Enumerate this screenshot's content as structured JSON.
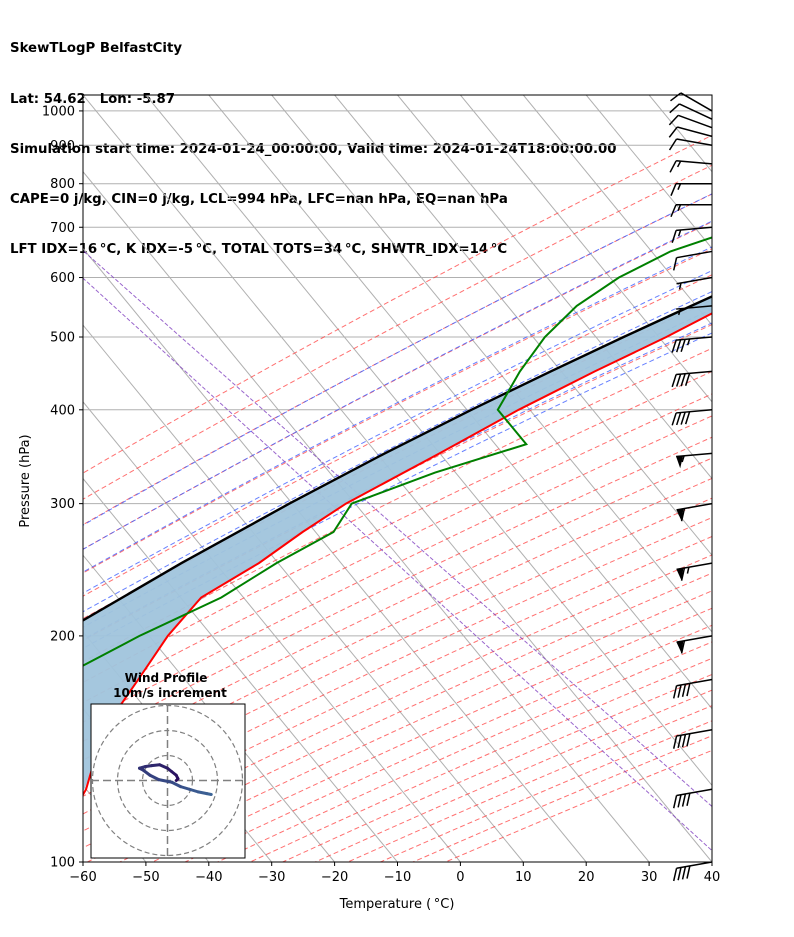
{
  "header": {
    "line1": "SkewTLogP BelfastCity",
    "line2": "Lat: 54.62   Lon: -5.87",
    "line3": "Simulation start time: 2024-01-24_00:00:00, Valid time: 2024-01-24T18:00:00.00",
    "line4": "CAPE=0 j/kg, CIN=0 j/kg, LCL=994 hPa, LFC=nan hPa, EQ=nan hPa",
    "line5": "LFT IDX=16 °C, K IDX=-5 °C, TOTAL TOTS=34 °C, SHWTR_IDX=14 °C"
  },
  "chart_data": {
    "type": "skew-t",
    "xlabel": "Temperature ( °C)",
    "ylabel": "Pressure (hPa)",
    "xlim": [
      -60,
      40
    ],
    "ylim": [
      1050,
      100
    ],
    "x_ticks": [
      "−60",
      "−50",
      "−40",
      "−30",
      "−20",
      "−10",
      "0",
      "10",
      "20",
      "30",
      "40"
    ],
    "y_ticks": [
      "100",
      "200",
      "300",
      "400",
      "500",
      "600",
      "700",
      "800",
      "900",
      "1000"
    ],
    "grid": true,
    "temperature": {
      "color": "#ff0000",
      "p": [
        1000,
        975,
        950,
        925,
        900,
        850,
        800,
        750,
        700,
        650,
        600,
        550,
        500,
        450,
        400,
        350,
        300,
        275,
        250,
        225,
        200,
        175,
        150,
        125,
        100
      ],
      "t": [
        6.8,
        5.8,
        4.2,
        2.5,
        0.9,
        -2.6,
        -6.1,
        -9.9,
        -14.2,
        -19.2,
        -24.4,
        -30.2,
        -35.7,
        -42.6,
        -49.7,
        -56.6,
        -64.9,
        -68.1,
        -71.0,
        -75.7,
        -76.0,
        -75.0,
        -74.0,
        -69.0,
        -66.0
      ]
    },
    "dewpoint": {
      "color": "#008000",
      "p": [
        1000,
        975,
        950,
        900,
        850,
        800,
        750,
        700,
        650,
        600,
        550,
        500,
        450,
        400,
        360,
        330,
        300,
        275,
        250,
        225,
        200,
        175,
        150,
        125,
        100
      ],
      "td": [
        5.5,
        4.5,
        3.3,
        -0.3,
        -4.0,
        -11.5,
        -26.9,
        -38.0,
        -46.2,
        -51.0,
        -54.0,
        -55.0,
        -54.5,
        -53.0,
        -44.0,
        -54.8,
        -64.0,
        -63.2,
        -68.2,
        -72.5,
        -80.5,
        -88.0,
        -95.5,
        -97.0,
        -100.0
      ]
    },
    "parcel_profile": {
      "color": "#000000",
      "p": [
        1000,
        994,
        950,
        900,
        850,
        800,
        750,
        700,
        650,
        600,
        550,
        500,
        450,
        400,
        350,
        300,
        250,
        200,
        150,
        100
      ],
      "t": [
        4.2,
        3.6,
        1.0,
        -2.2,
        -5.7,
        -9.5,
        -13.8,
        -18.6,
        -23.9,
        -29.6,
        -35.8,
        -42.5,
        -49.6,
        -57.2,
        -65.3,
        -73.9,
        -83.3,
        -93.7,
        -105.5,
        -120.0
      ]
    },
    "shaded_region": {
      "color": "#a0c4dc",
      "between": [
        "temperature",
        "parcel_profile"
      ]
    },
    "wind_barbs": {
      "p": [
        1000,
        975,
        950,
        925,
        900,
        850,
        800,
        750,
        700,
        650,
        600,
        550,
        500,
        450,
        400,
        350,
        300,
        250,
        200,
        175,
        150,
        125,
        100
      ],
      "speed_kt": [
        10,
        10,
        10,
        10,
        10,
        15,
        15,
        15,
        15,
        10,
        5,
        5,
        35,
        40,
        40,
        55,
        60,
        65,
        60,
        40,
        40,
        40,
        40
      ],
      "direction_deg": [
        240,
        245,
        250,
        255,
        260,
        265,
        270,
        270,
        275,
        280,
        280,
        275,
        275,
        275,
        275,
        275,
        280,
        280,
        280,
        280,
        280,
        280,
        280
      ]
    },
    "hodograph": {
      "title_line1": "Wind Profile",
      "title_line2": "10m/s increment",
      "u": [
        5.0,
        4.5,
        3.5,
        2.5,
        1.5,
        0.5,
        -1.0,
        -2.0,
        -2.8,
        -3.2,
        -2.5,
        -1.8,
        -0.9,
        0.0,
        0.5,
        1.0,
        1.2,
        1.0
      ],
      "v": [
        -1.6,
        -1.5,
        -1.3,
        -1.0,
        -0.7,
        -0.2,
        0.1,
        0.6,
        1.2,
        1.4,
        1.6,
        1.7,
        1.8,
        1.4,
        1.0,
        0.6,
        0.2,
        0.0
      ],
      "rings_ms": [
        10,
        20,
        30
      ]
    }
  }
}
